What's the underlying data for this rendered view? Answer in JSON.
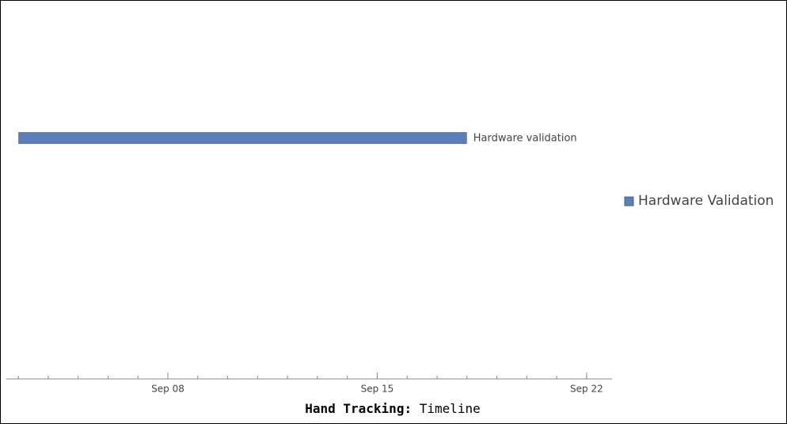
{
  "chart_data": {
    "type": "gantt",
    "title": {
      "bold": "Hand Tracking:",
      "text": "Timeline"
    },
    "tasks": [
      {
        "name": "Hardware validation",
        "start": 3,
        "end": 18
      }
    ],
    "series": [
      {
        "name": "Hardware Validation",
        "color": "#5b7fb8"
      }
    ],
    "xlim": [
      2.6,
      22.85
    ],
    "xticks": [
      {
        "value": 8,
        "label": "Sep 08"
      },
      {
        "value": 15,
        "label": "Sep 15"
      },
      {
        "value": 22,
        "label": "Sep 22"
      }
    ],
    "minor_xticks": [
      3,
      4,
      5,
      6,
      7,
      8,
      9,
      10,
      11,
      12,
      13,
      14,
      15,
      16,
      17,
      18,
      19,
      20,
      21,
      22
    ],
    "legend": "right"
  }
}
